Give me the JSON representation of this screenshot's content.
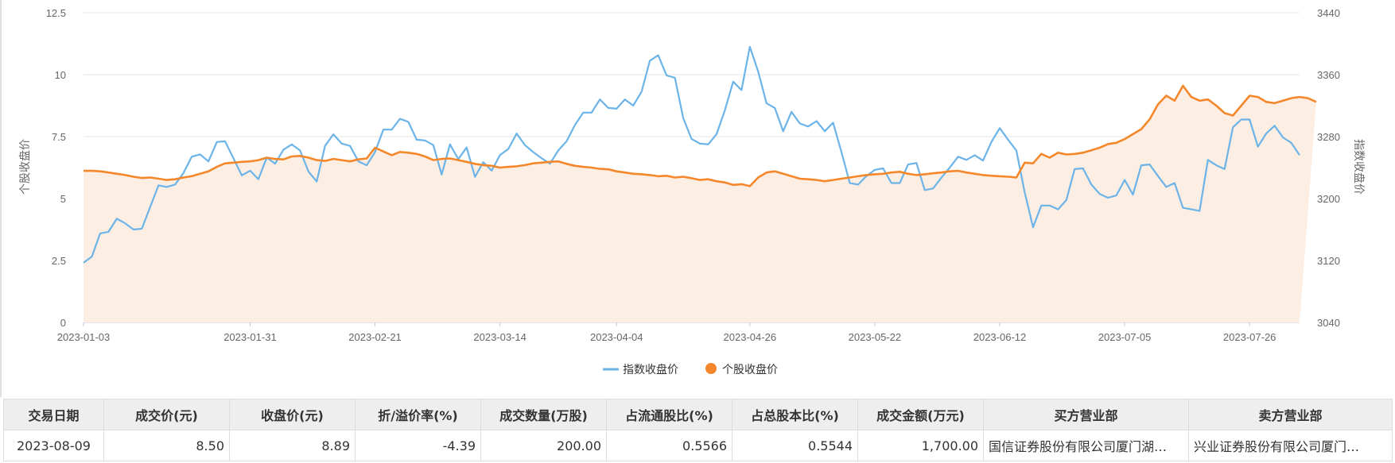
{
  "chart_data": {
    "type": "line",
    "xlabel": "",
    "y_left_label": "个股收盘价",
    "y_right_label": "指数收盘价",
    "y_left_lim": [
      0,
      12.5
    ],
    "y_left_ticks": [
      "0",
      "2.5",
      "5",
      "7.5",
      "10",
      "12.5"
    ],
    "y_right_lim": [
      3040,
      3440
    ],
    "y_right_ticks": [
      "3040",
      "3120",
      "3200",
      "3280",
      "3360",
      "3440"
    ],
    "x_tick_labels": [
      "2023-01-03",
      "2023-01-31",
      "2023-02-21",
      "2023-03-14",
      "2023-04-04",
      "2023-04-26",
      "2023-05-22",
      "2023-06-12",
      "2023-07-05",
      "2023-07-26"
    ],
    "x_tick_index": [
      0,
      20,
      35,
      50,
      64,
      80,
      95,
      110,
      125,
      140
    ],
    "grid": true,
    "legend_position": "bottom-center",
    "series": [
      {
        "name": "指数收盘价",
        "axis": "right",
        "color": "#6cb4e8",
        "values": [
          3117,
          3125,
          3155,
          3157,
          3174,
          3168,
          3160,
          3161,
          3189,
          3217,
          3215,
          3218,
          3233,
          3254,
          3257,
          3248,
          3273,
          3274,
          3252,
          3230,
          3236,
          3225,
          3253,
          3245,
          3263,
          3270,
          3262,
          3235,
          3222,
          3268,
          3283,
          3271,
          3268,
          3248,
          3243,
          3260,
          3289,
          3289,
          3303,
          3299,
          3276,
          3275,
          3269,
          3231,
          3270,
          3251,
          3266,
          3228,
          3247,
          3236,
          3256,
          3264,
          3284,
          3269,
          3260,
          3252,
          3245,
          3262,
          3274,
          3295,
          3311,
          3311,
          3328,
          3317,
          3316,
          3328,
          3320,
          3338,
          3378,
          3385,
          3359,
          3356,
          3304,
          3277,
          3271,
          3270,
          3283,
          3314,
          3351,
          3340,
          3396,
          3364,
          3323,
          3317,
          3287,
          3312,
          3297,
          3293,
          3300,
          3287,
          3298,
          3260,
          3220,
          3218,
          3229,
          3237,
          3239,
          3220,
          3220,
          3244,
          3246,
          3211,
          3213,
          3227,
          3240,
          3254,
          3250,
          3256,
          3249,
          3273,
          3291,
          3276,
          3262,
          3208,
          3163,
          3191,
          3191,
          3186,
          3198,
          3238,
          3239,
          3218,
          3206,
          3201,
          3204,
          3224,
          3205,
          3243,
          3244,
          3229,
          3215,
          3220,
          3188,
          3186,
          3184,
          3250,
          3243,
          3238,
          3292,
          3302,
          3302,
          3267,
          3284,
          3294,
          3279,
          3272,
          3256
        ]
      },
      {
        "name": "个股收盘价",
        "axis": "left",
        "color": "#f5872b",
        "values": [
          6.12,
          6.12,
          6.1,
          6.05,
          6.0,
          5.95,
          5.88,
          5.83,
          5.85,
          5.8,
          5.75,
          5.78,
          5.85,
          5.9,
          6.0,
          6.1,
          6.28,
          6.42,
          6.45,
          6.48,
          6.5,
          6.55,
          6.65,
          6.6,
          6.58,
          6.7,
          6.72,
          6.65,
          6.55,
          6.52,
          6.6,
          6.55,
          6.5,
          6.58,
          6.62,
          7.05,
          6.9,
          6.75,
          6.88,
          6.85,
          6.8,
          6.7,
          6.55,
          6.6,
          6.62,
          6.55,
          6.48,
          6.4,
          6.35,
          6.32,
          6.25,
          6.28,
          6.3,
          6.35,
          6.42,
          6.45,
          6.48,
          6.5,
          6.4,
          6.32,
          6.28,
          6.25,
          6.2,
          6.18,
          6.1,
          6.05,
          6.0,
          5.98,
          5.95,
          5.9,
          5.92,
          5.85,
          5.88,
          5.82,
          5.75,
          5.78,
          5.7,
          5.65,
          5.55,
          5.58,
          5.5,
          5.85,
          6.05,
          6.1,
          6.0,
          5.9,
          5.8,
          5.78,
          5.75,
          5.7,
          5.75,
          5.8,
          5.85,
          5.9,
          5.95,
          5.98,
          6.0,
          6.05,
          6.08,
          6.0,
          5.95,
          5.98,
          6.02,
          6.05,
          6.1,
          6.12,
          6.05,
          6.0,
          5.95,
          5.92,
          5.9,
          5.88,
          5.85,
          6.45,
          6.42,
          6.8,
          6.65,
          6.85,
          6.78,
          6.8,
          6.85,
          6.95,
          7.05,
          7.2,
          7.25,
          7.4,
          7.6,
          7.8,
          8.2,
          8.8,
          9.15,
          8.95,
          9.55,
          9.1,
          8.95,
          9.0,
          8.75,
          8.45,
          8.35,
          8.75,
          9.15,
          9.1,
          8.9,
          8.85,
          8.95,
          9.05,
          9.1,
          9.05,
          8.9
        ]
      }
    ]
  },
  "legend": {
    "index_label": "指数收盘价",
    "stock_label": "个股收盘价"
  },
  "table": {
    "headers": [
      "交易日期",
      "成交价(元)",
      "收盘价(元)",
      "折/溢价率(%)",
      "成交数量(万股)",
      "占流通股比(%)",
      "占总股本比(%)",
      "成交金额(万元)",
      "买方营业部",
      "卖方营业部"
    ],
    "rows": [
      [
        "2023-08-09",
        "8.50",
        "8.89",
        "-4.39",
        "200.00",
        "0.5566",
        "0.5544",
        "1,700.00",
        "国信证券股份有限公司厦门湖…",
        "兴业证券股份有限公司厦门…"
      ]
    ]
  },
  "colors": {
    "index_line": "#6cb4e8",
    "stock_line": "#f5872b",
    "stock_fill": "#fdeee4",
    "grid": "#e6e6e6",
    "table_header_bg": "#eeeeee"
  }
}
